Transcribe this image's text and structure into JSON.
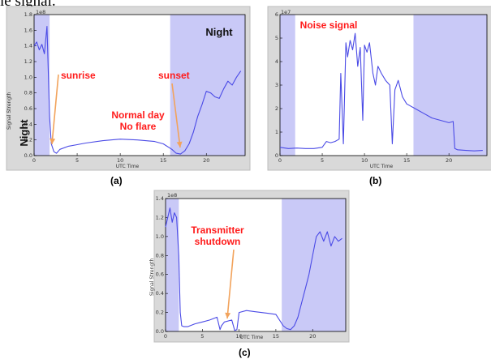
{
  "fragment_text": "ie signal.",
  "colors": {
    "night_shade": "#c9c9f7",
    "line": "#4a4ae6",
    "annotation": "#ff1a1a",
    "arrow": "#f2a35c"
  },
  "chart_data": [
    {
      "type": "line",
      "panel_label": "(a)",
      "xlabel": "UTC Time",
      "ylabel": "Signal Strength",
      "y_multiplier_label": "1e8",
      "xlim": [
        0,
        24.5
      ],
      "ylim": [
        0,
        1.8
      ],
      "xticks": [
        0,
        5,
        10,
        15,
        20
      ],
      "yticks": [
        0.0,
        0.2,
        0.4,
        0.6,
        0.8,
        1.0,
        1.2,
        1.4,
        1.6,
        1.8
      ],
      "ytick_labels": [
        "0.0",
        "0.2",
        "0.4",
        "0.6",
        "0.8",
        "1.0",
        "1.2",
        "1.4",
        "1.6",
        "1.8"
      ],
      "shaded_regions": [
        [
          0,
          1.8
        ],
        [
          15.8,
          24.5
        ]
      ],
      "x": [
        0,
        0.3,
        0.6,
        0.9,
        1.2,
        1.5,
        1.6,
        1.8,
        2.0,
        2.3,
        2.6,
        3,
        4,
        5,
        6,
        8,
        10,
        12,
        14,
        15,
        16,
        16.5,
        17,
        17.5,
        18,
        18.5,
        19,
        19.5,
        20,
        20.5,
        21,
        21.5,
        22,
        22.5,
        23,
        23.5,
        24
      ],
      "y": [
        1.4,
        1.45,
        1.35,
        1.42,
        1.3,
        1.65,
        1.25,
        0.5,
        0.15,
        0.05,
        0.03,
        0.08,
        0.12,
        0.14,
        0.16,
        0.19,
        0.21,
        0.2,
        0.18,
        0.15,
        0.08,
        0.03,
        0.02,
        0.06,
        0.15,
        0.3,
        0.5,
        0.65,
        0.82,
        0.8,
        0.75,
        0.73,
        0.85,
        0.95,
        0.9,
        1.0,
        1.08
      ],
      "annotations": [
        {
          "text": "sunrise",
          "color": "red"
        },
        {
          "text": "sunset",
          "color": "red"
        },
        {
          "text": "Normal day",
          "color": "red"
        },
        {
          "text": "No flare",
          "color": "red"
        },
        {
          "text": "Night",
          "color": "dark"
        },
        {
          "text": "Night",
          "color": "dark"
        }
      ]
    },
    {
      "type": "line",
      "panel_label": "(b)",
      "xlabel": "UTC Time",
      "ylabel": "",
      "y_multiplier_label": "1e7",
      "xlim": [
        0,
        24.5
      ],
      "ylim": [
        0,
        6
      ],
      "xticks": [
        0,
        5,
        10,
        15,
        20
      ],
      "yticks": [
        0,
        1,
        2,
        3,
        4,
        5,
        6
      ],
      "ytick_labels": [
        "0",
        "1",
        "2",
        "3",
        "4",
        "5",
        "6"
      ],
      "shaded_regions": [
        [
          0,
          1.8
        ],
        [
          15.8,
          24.5
        ]
      ],
      "x": [
        0,
        1,
        2,
        3,
        4,
        5,
        5.5,
        6,
        6.5,
        7,
        7.2,
        7.5,
        7.8,
        8,
        8.3,
        8.6,
        8.9,
        9.2,
        9.5,
        9.8,
        10,
        10.3,
        10.6,
        11,
        11.3,
        11.6,
        12,
        12.5,
        13,
        13.3,
        13.6,
        14,
        14.5,
        15,
        16,
        17,
        18,
        19,
        20,
        20.5,
        20.7,
        21,
        22,
        23,
        24
      ],
      "y": [
        0.35,
        0.3,
        0.32,
        0.3,
        0.3,
        0.35,
        0.6,
        0.55,
        0.6,
        0.7,
        3.5,
        0.5,
        4.8,
        4.2,
        4.9,
        4.5,
        5.2,
        3.8,
        4.6,
        1.5,
        4.7,
        4.4,
        4.8,
        3.5,
        3.0,
        3.8,
        3.5,
        3.2,
        3.0,
        0.5,
        2.8,
        3.2,
        2.5,
        2.2,
        2.0,
        1.8,
        1.6,
        1.5,
        1.4,
        1.45,
        0.3,
        0.25,
        0.22,
        0.2,
        0.22
      ],
      "annotations": [
        {
          "text": "Noise signal",
          "color": "red"
        }
      ]
    },
    {
      "type": "line",
      "panel_label": "(c)",
      "xlabel": "UTC Time",
      "ylabel": "Signal Strength",
      "y_multiplier_label": "1e8",
      "xlim": [
        0,
        24.5
      ],
      "ylim": [
        0,
        1.4
      ],
      "xticks": [
        0,
        5,
        10,
        15,
        20
      ],
      "yticks": [
        0.0,
        0.2,
        0.4,
        0.6,
        0.8,
        1.0,
        1.2,
        1.4
      ],
      "ytick_labels": [
        "0.0",
        "0.2",
        "0.4",
        "0.6",
        "0.8",
        "1.0",
        "1.2",
        "1.4"
      ],
      "shaded_regions": [
        [
          0,
          1.8
        ],
        [
          15.8,
          24.5
        ]
      ],
      "x": [
        0,
        0.3,
        0.6,
        0.9,
        1.2,
        1.5,
        1.8,
        2.0,
        2.2,
        2.5,
        3,
        4,
        5,
        6,
        7,
        7.4,
        7.6,
        8,
        9,
        9.4,
        9.7,
        10,
        11,
        12,
        13,
        14,
        15,
        15.5,
        16,
        16.5,
        17,
        17.5,
        18,
        18.5,
        19,
        19.5,
        20,
        20.5,
        21,
        21.5,
        22,
        22.5,
        23,
        23.5,
        24
      ],
      "y": [
        1.1,
        1.2,
        1.3,
        1.15,
        1.25,
        1.2,
        0.8,
        0.2,
        0.06,
        0.05,
        0.05,
        0.08,
        0.1,
        0.12,
        0.15,
        0.02,
        0.06,
        0.1,
        0.12,
        0.01,
        0.02,
        0.2,
        0.22,
        0.21,
        0.2,
        0.19,
        0.18,
        0.12,
        0.06,
        0.03,
        0.02,
        0.06,
        0.15,
        0.3,
        0.45,
        0.6,
        0.8,
        1.0,
        1.05,
        0.95,
        1.05,
        0.9,
        1.0,
        0.95,
        0.98
      ],
      "annotations": [
        {
          "text": "Transmitter",
          "color": "red"
        },
        {
          "text": "shutdown",
          "color": "red"
        }
      ]
    }
  ]
}
